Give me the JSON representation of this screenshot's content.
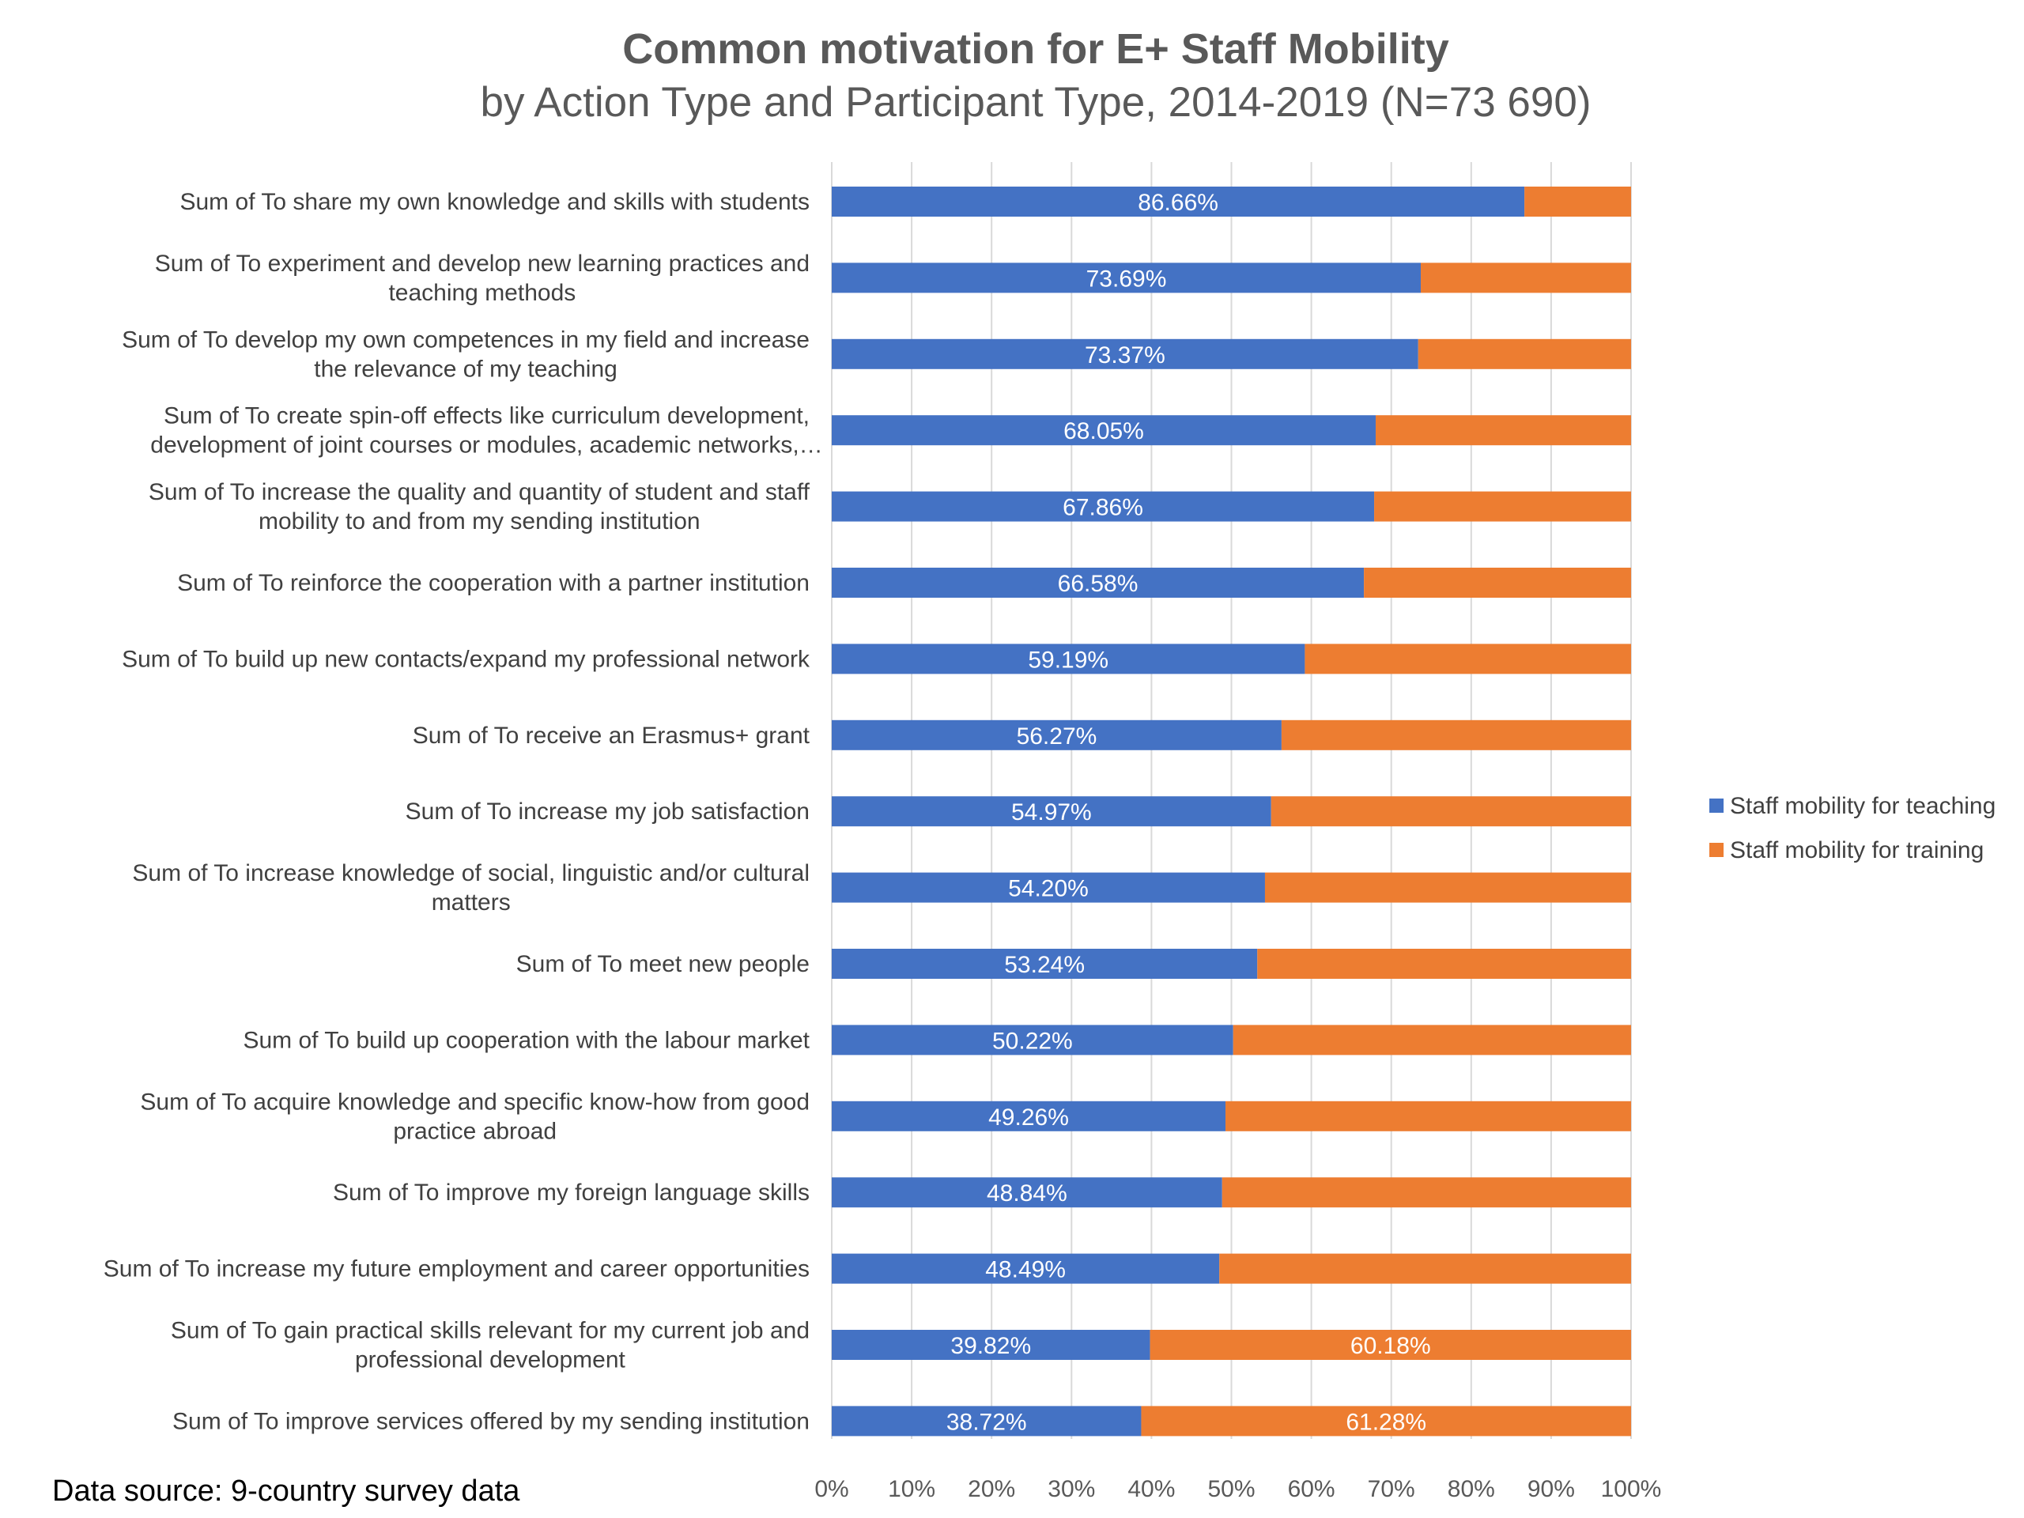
{
  "chart_data": {
    "type": "bar",
    "orientation": "horizontal",
    "stacking": "percent",
    "title": "Common motivation for E+ Staff Mobility",
    "subtitle": "by Action Type and Participant Type, 2014-2019 (N=73 690)",
    "categories": [
      [
        "Sum of To share my own knowledge and skills with students"
      ],
      [
        "Sum of To experiment and develop new learning practices and",
        "teaching methods"
      ],
      [
        "Sum of To develop my own competences in my field and increase",
        "the relevance of my teaching"
      ],
      [
        "Sum of To create spin-off effects like curriculum development,",
        "development of joint courses or modules, academic networks,…"
      ],
      [
        "Sum of To increase the quality and quantity of student and staff",
        "mobility to and from my sending institution"
      ],
      [
        "Sum of To reinforce the cooperation with a partner institution"
      ],
      [
        "Sum of To build up new contacts/expand my professional network"
      ],
      [
        "Sum of To receive an Erasmus+ grant"
      ],
      [
        "Sum of To increase my job satisfaction"
      ],
      [
        "Sum of To increase knowledge of social, linguistic and/or cultural",
        "matters"
      ],
      [
        "Sum of To meet new people"
      ],
      [
        "Sum of To build up cooperation with the labour market"
      ],
      [
        "Sum of To acquire knowledge and specific know-how from good",
        "practice abroad"
      ],
      [
        "Sum of To improve my foreign language skills"
      ],
      [
        "Sum of To increase my future employment and career opportunities"
      ],
      [
        "Sum of To gain practical skills relevant for my current job and",
        "professional development"
      ],
      [
        "Sum of To improve services offered by my sending institution"
      ]
    ],
    "series": [
      {
        "name": "Staff mobility for teaching",
        "color": "#4472C4",
        "values": [
          86.66,
          73.69,
          73.37,
          68.05,
          67.86,
          66.58,
          59.19,
          56.27,
          54.97,
          54.2,
          53.24,
          50.22,
          49.26,
          48.84,
          48.49,
          39.82,
          38.72
        ],
        "labels": [
          "86.66%",
          "73.69%",
          "73.37%",
          "68.05%",
          "67.86%",
          "66.58%",
          "59.19%",
          "56.27%",
          "54.97%",
          "54.20%",
          "53.24%",
          "50.22%",
          "49.26%",
          "48.84%",
          "48.49%",
          "39.82%",
          "38.72%"
        ]
      },
      {
        "name": "Staff mobility for training",
        "color": "#ED7D31",
        "values": [
          13.34,
          26.31,
          26.63,
          31.95,
          32.14,
          33.42,
          40.81,
          43.73,
          45.03,
          45.8,
          46.76,
          49.78,
          50.74,
          51.16,
          51.51,
          60.18,
          61.28
        ],
        "labels": [
          "",
          "",
          "",
          "",
          "",
          "",
          "",
          "",
          "",
          "",
          "",
          "",
          "",
          "",
          "",
          "60.18%",
          "61.28%"
        ]
      }
    ],
    "xlim": [
      0,
      100
    ],
    "x_ticks": [
      "0%",
      "10%",
      "20%",
      "30%",
      "40%",
      "50%",
      "60%",
      "70%",
      "80%",
      "90%",
      "100%"
    ],
    "grid": true,
    "legend_position": "right",
    "source_note": "Data source: 9-country survey data"
  }
}
